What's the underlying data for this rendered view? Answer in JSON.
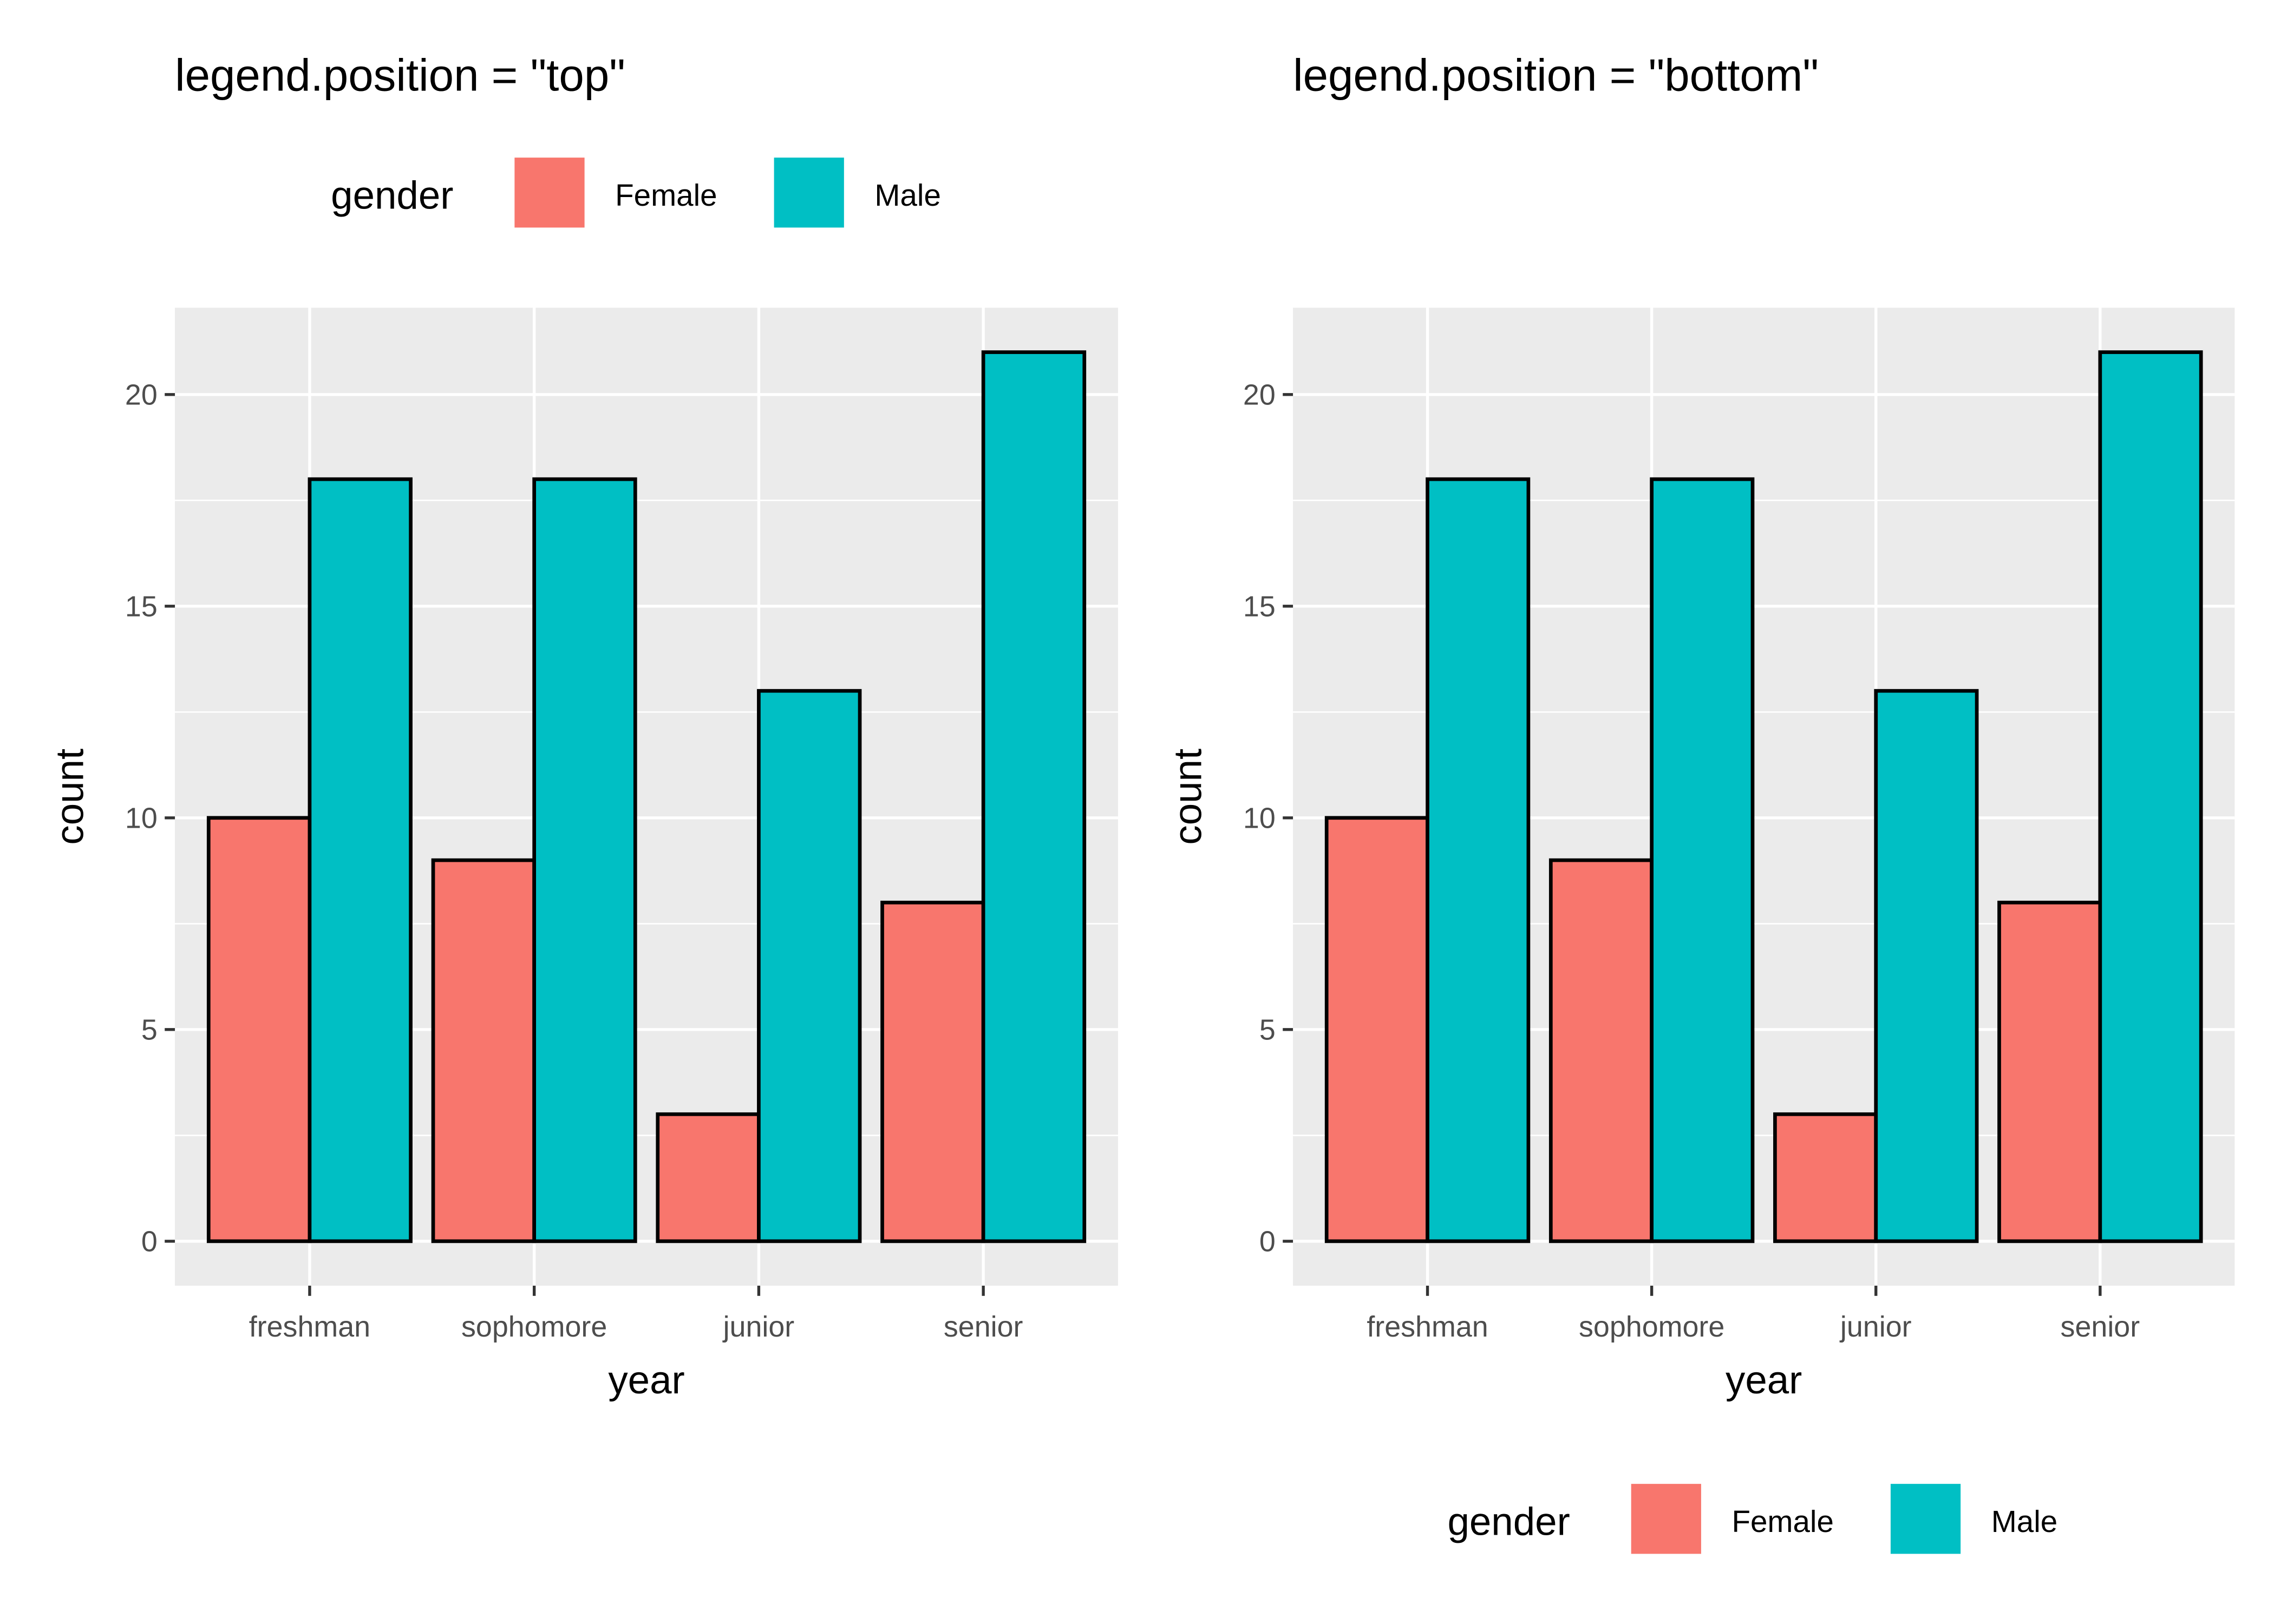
{
  "colors": {
    "Female": "#F8766D",
    "Male": "#00BFC4",
    "panel": "#EBEBEB",
    "grid": "#FFFFFF",
    "outline": "#000000"
  },
  "chart_data": [
    {
      "type": "bar",
      "title": "legend.position  = \"top\"",
      "xlabel": "year",
      "ylabel": "count",
      "categories": [
        "freshman",
        "sophomore",
        "junior",
        "senior"
      ],
      "series": [
        {
          "name": "Female",
          "values": [
            10,
            9,
            3,
            8
          ]
        },
        {
          "name": "Male",
          "values": [
            18,
            18,
            13,
            21
          ]
        }
      ],
      "yticks": [
        0,
        5,
        10,
        15,
        20
      ],
      "ylim": [
        -1.05,
        22.05
      ],
      "grid": true,
      "legend": {
        "title": "gender",
        "entries": [
          "Female",
          "Male"
        ],
        "position": "top"
      }
    },
    {
      "type": "bar",
      "title": "legend.position  = \"bottom\"",
      "xlabel": "year",
      "ylabel": "count",
      "categories": [
        "freshman",
        "sophomore",
        "junior",
        "senior"
      ],
      "series": [
        {
          "name": "Female",
          "values": [
            10,
            9,
            3,
            8
          ]
        },
        {
          "name": "Male",
          "values": [
            18,
            18,
            13,
            21
          ]
        }
      ],
      "yticks": [
        0,
        5,
        10,
        15,
        20
      ],
      "ylim": [
        -1.05,
        22.05
      ],
      "grid": true,
      "legend": {
        "title": "gender",
        "entries": [
          "Female",
          "Male"
        ],
        "position": "bottom"
      }
    }
  ]
}
